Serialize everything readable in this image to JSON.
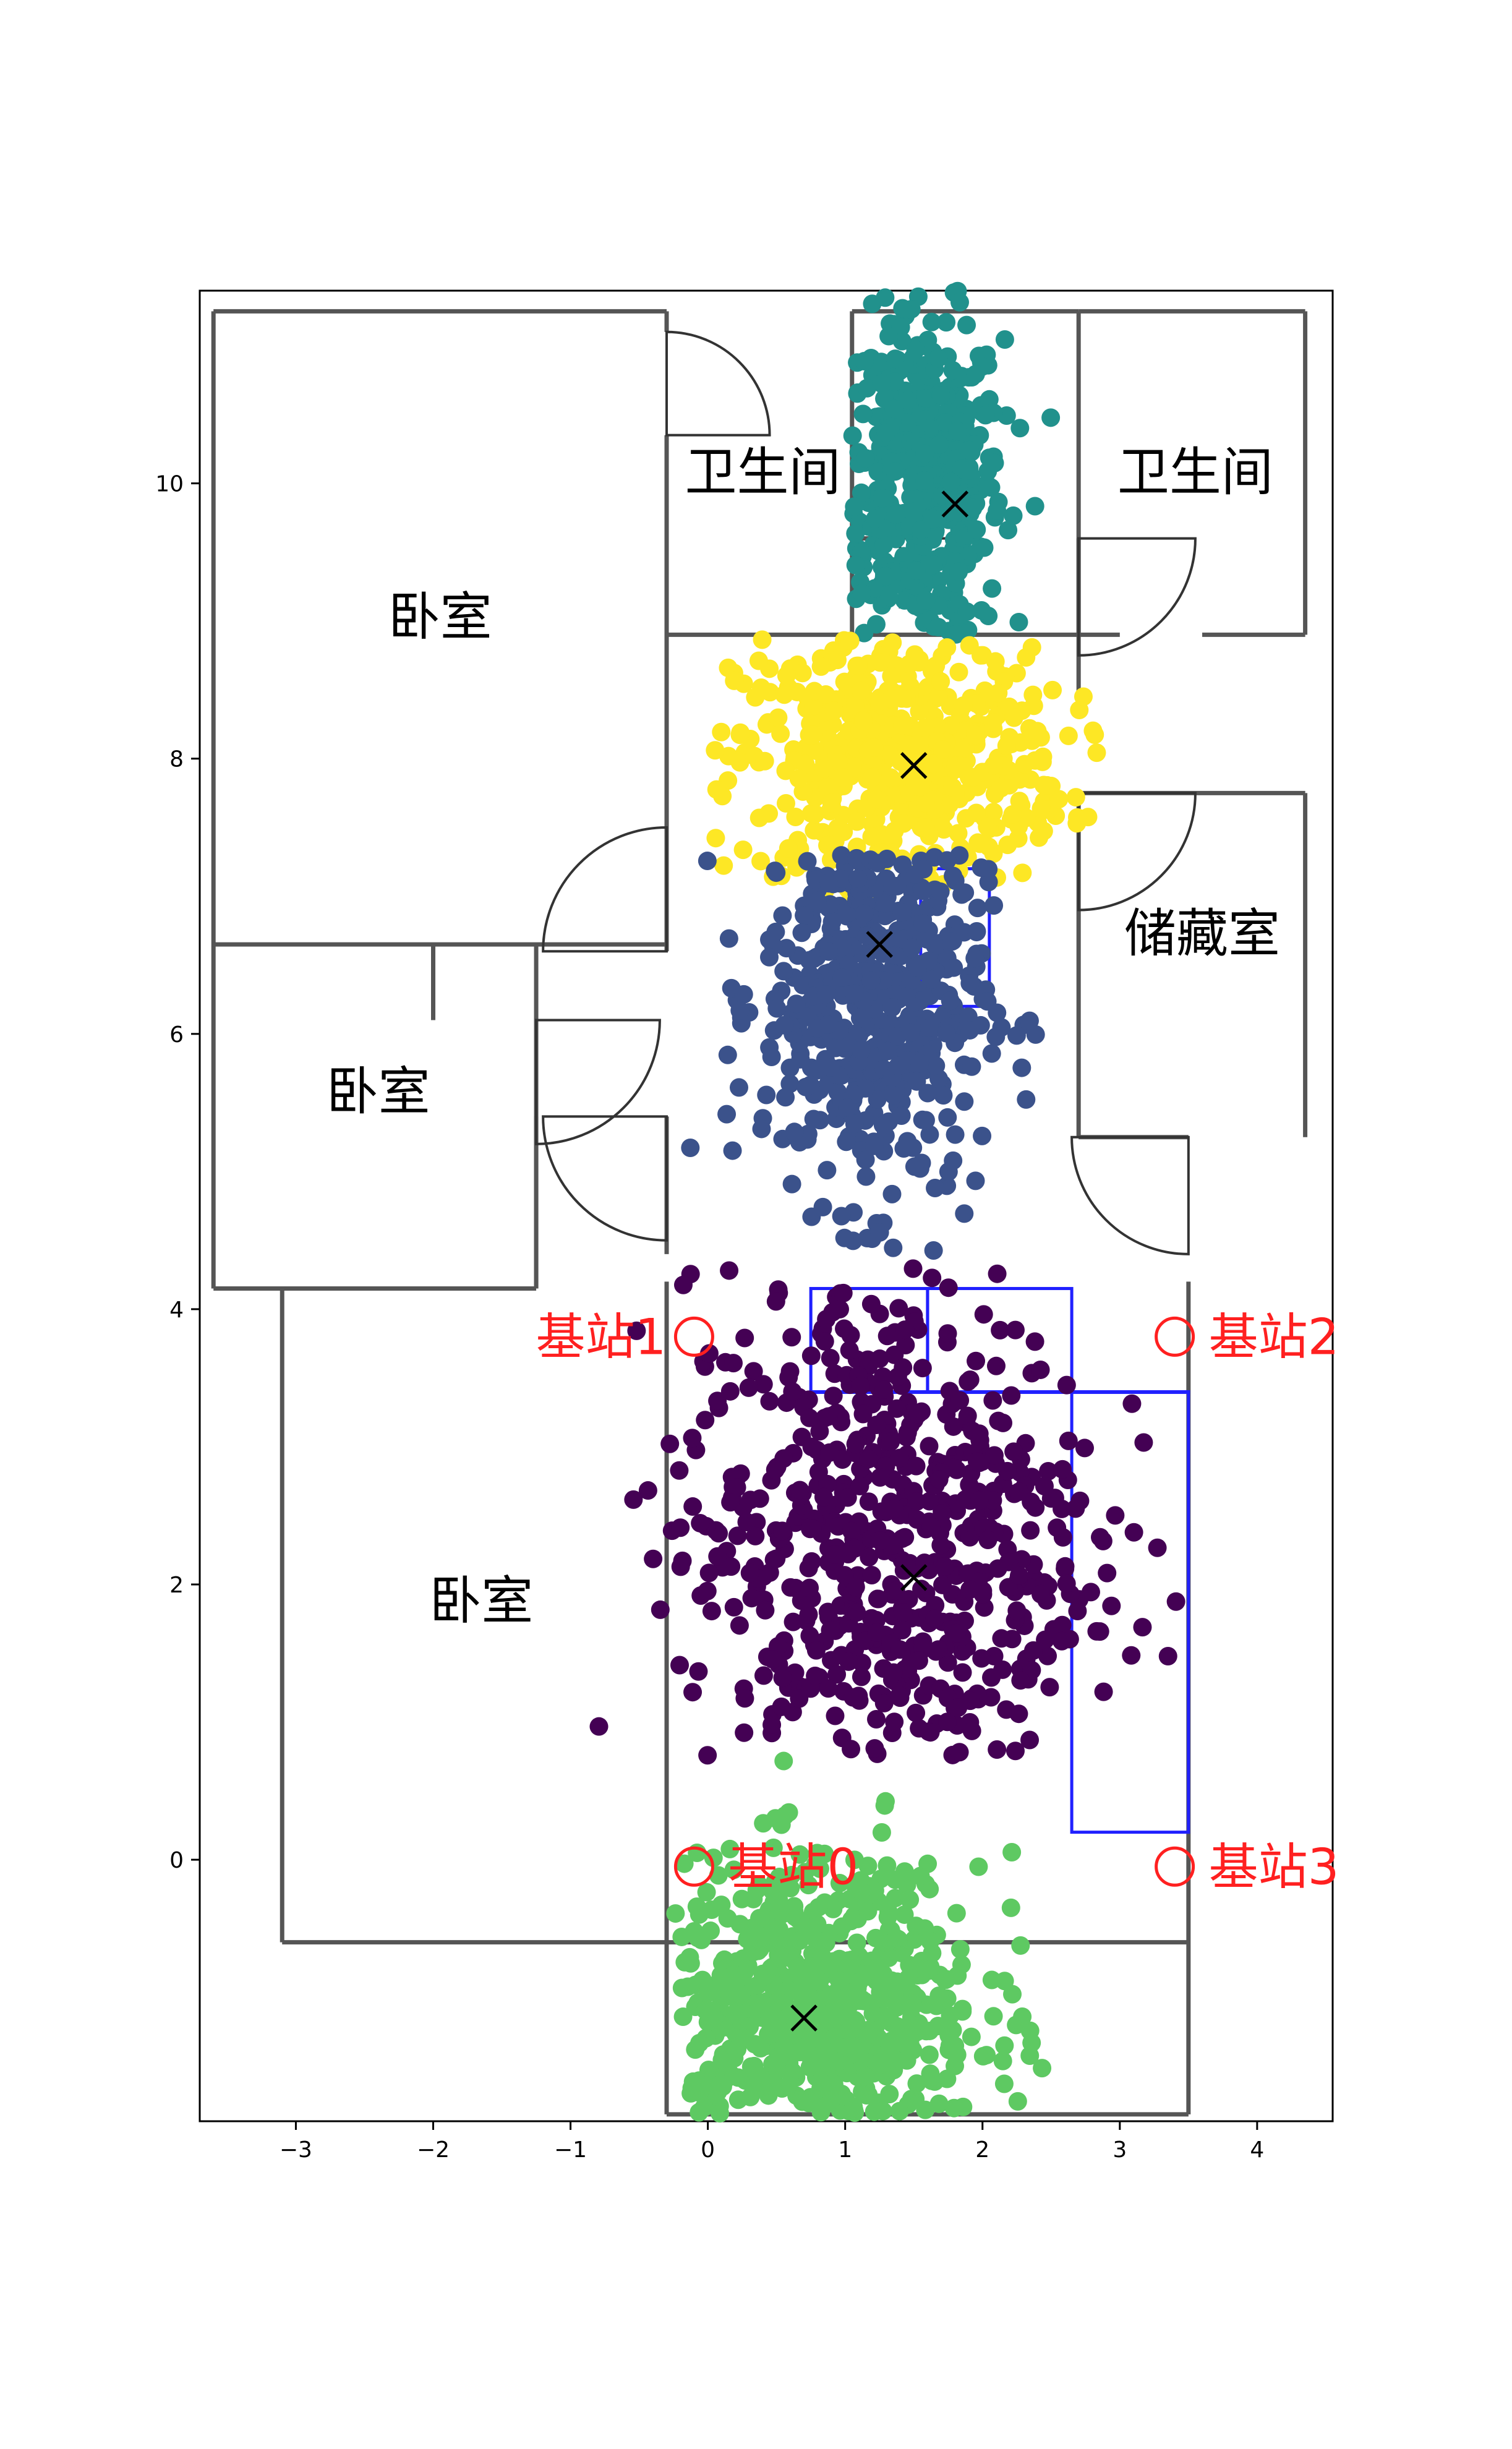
{
  "chart_data": {
    "type": "scatter",
    "title": "",
    "xlabel": "",
    "ylabel": "",
    "xlim": [
      -3.7,
      4.55
    ],
    "ylim": [
      -1.9,
      11.4
    ],
    "x_ticks": [
      -3,
      -2,
      -1,
      0,
      1,
      2,
      3,
      4
    ],
    "y_ticks": [
      0,
      2,
      4,
      6,
      8,
      10
    ],
    "x_tick_labels": [
      "−3",
      "−2",
      "−1",
      "0",
      "1",
      "2",
      "3",
      "4"
    ],
    "y_tick_labels": [
      "0",
      "2",
      "4",
      "6",
      "8",
      "10"
    ],
    "grid": false,
    "rooms": [
      {
        "label": "卧室",
        "x": -1.95,
        "y": 8.9
      },
      {
        "label": "卧室",
        "x": -2.4,
        "y": 5.45
      },
      {
        "label": "卧室",
        "x": -1.65,
        "y": 1.75
      },
      {
        "label": "卫生间",
        "x": 0.4,
        "y": 9.95
      },
      {
        "label": "卫生间",
        "x": 3.55,
        "y": 9.95
      },
      {
        "label": "储藏室",
        "x": 3.6,
        "y": 6.6
      }
    ],
    "base_stations": [
      {
        "label": "基站1",
        "x": -0.1,
        "y": 3.8
      },
      {
        "label": "基站2",
        "x": 3.4,
        "y": 3.8
      },
      {
        "label": "基站3",
        "x": 3.4,
        "y": -0.05
      },
      {
        "label": "基站0",
        "x": -0.1,
        "y": -0.05
      }
    ],
    "cluster_centers": [
      {
        "x": 1.8,
        "y": 9.85
      },
      {
        "x": 1.5,
        "y": 7.95
      },
      {
        "x": 1.25,
        "y": 6.65
      },
      {
        "x": 1.5,
        "y": 2.05
      },
      {
        "x": 0.7,
        "y": -1.15
      }
    ],
    "series": [
      {
        "color": "#21918c",
        "cx": 1.55,
        "cy": 10.0,
        "sx": 0.3,
        "sy": 0.6,
        "n": 500,
        "xmin": 1.05,
        "xmax": 2.7,
        "ymin": 8.9,
        "ymax": 11.4
      },
      {
        "color": "#fde725",
        "cx": 1.4,
        "cy": 8.0,
        "sx": 0.6,
        "sy": 0.45,
        "n": 550,
        "xmin": 0.0,
        "xmax": 2.85,
        "ymin": 7.0,
        "ymax": 8.9
      },
      {
        "color": "#3b528b",
        "cx": 1.2,
        "cy": 6.3,
        "sx": 0.4,
        "sy": 0.75,
        "n": 550,
        "xmin": -1.0,
        "xmax": 2.75,
        "ymin": 4.3,
        "ymax": 7.3
      },
      {
        "color": "#440154",
        "cx": 1.3,
        "cy": 2.3,
        "sx": 0.75,
        "sy": 1.0,
        "n": 650,
        "xmin": -1.5,
        "xmax": 3.7,
        "ymin": 0.75,
        "ymax": 4.3
      },
      {
        "color": "#5ec962",
        "cx": 0.8,
        "cy": -1.1,
        "sx": 0.6,
        "sy": 0.55,
        "n": 650,
        "xmin": -0.25,
        "xmax": 2.5,
        "ymin": -1.85,
        "ymax": 1.3
      }
    ],
    "legend": "none"
  }
}
